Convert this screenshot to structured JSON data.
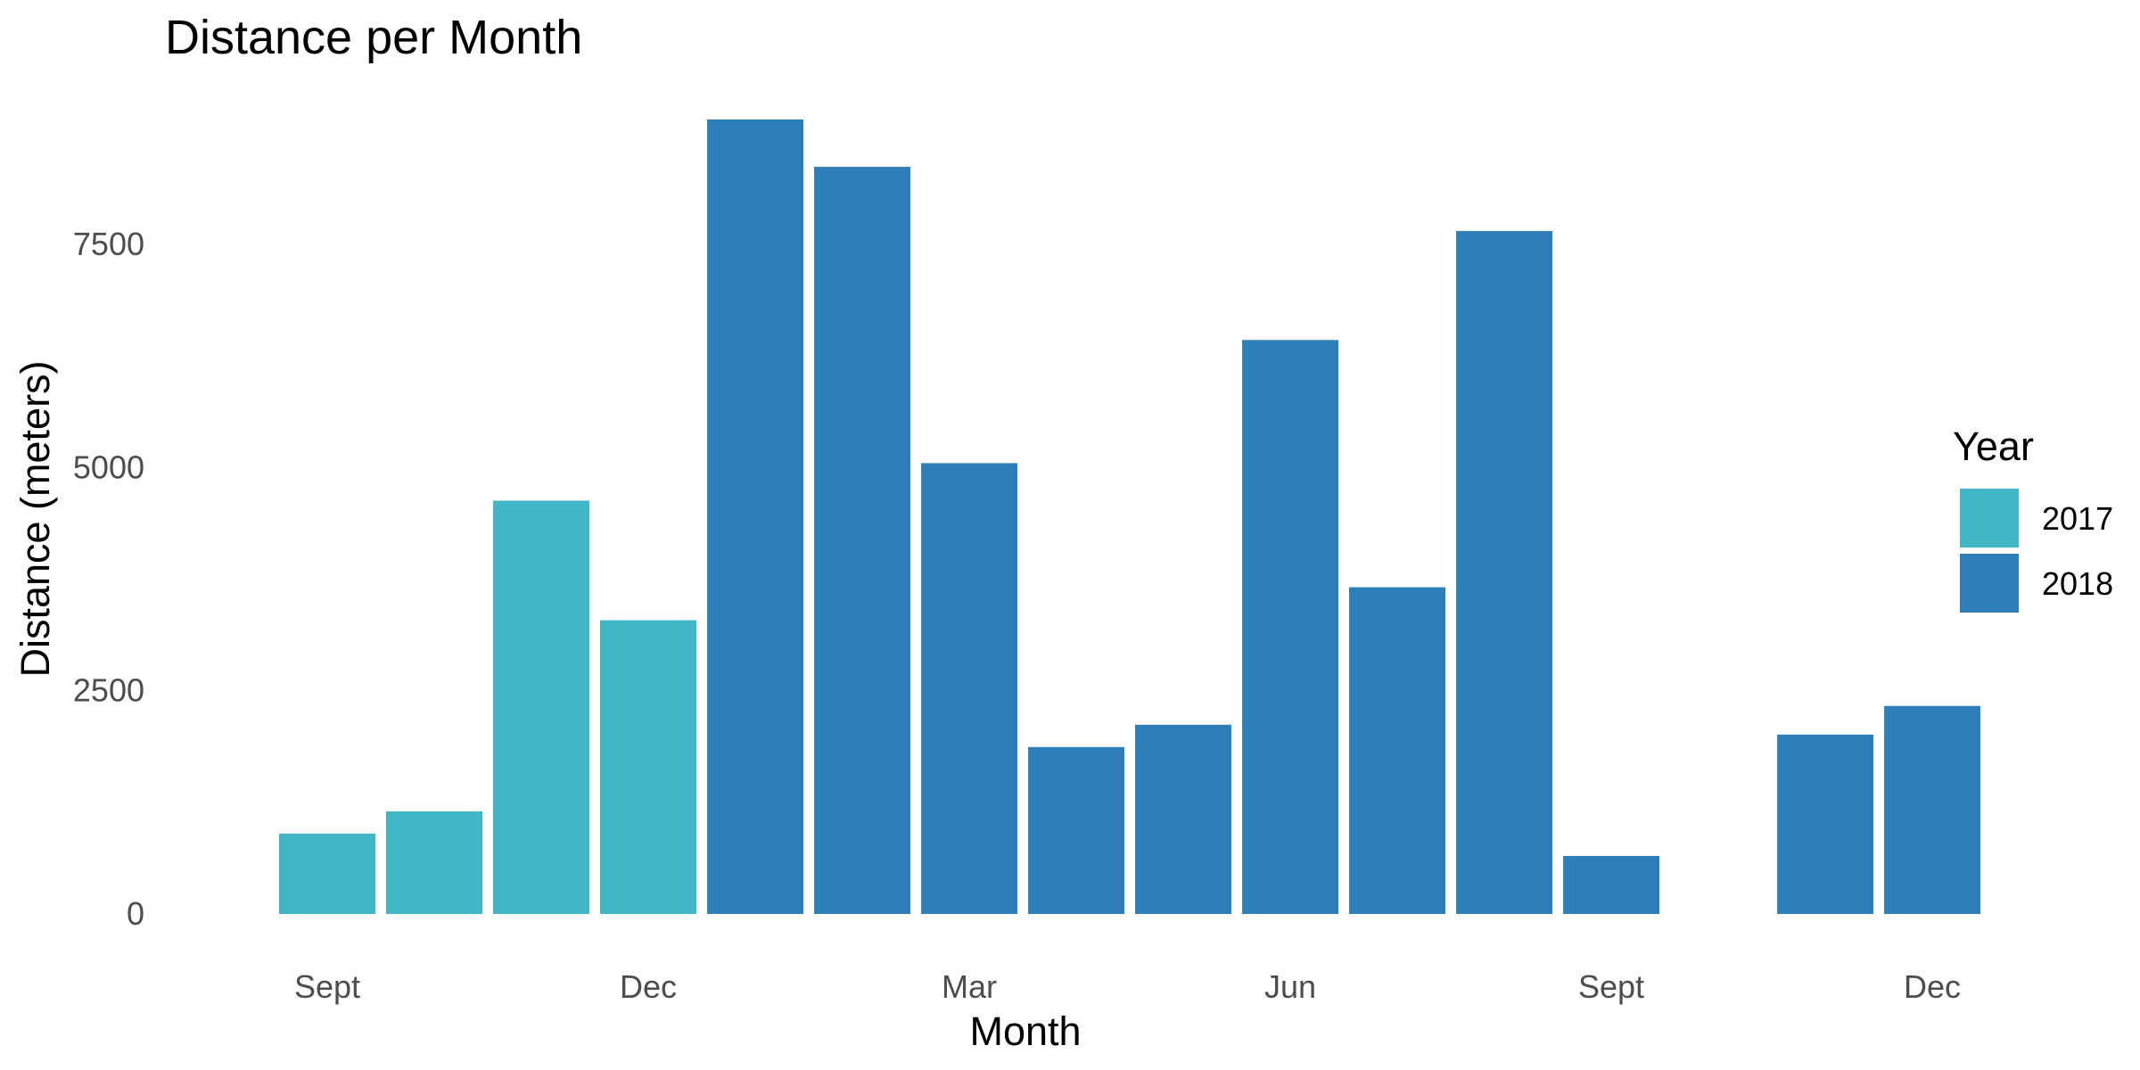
{
  "chart_data": {
    "type": "bar",
    "title": "Distance per Month",
    "xlabel": "Month",
    "ylabel": "Distance (meters)",
    "x_unit": "month",
    "x_range": [
      "2017-08",
      "2019-01"
    ],
    "x_tick_labels": [
      "Sept",
      "Dec",
      "Mar",
      "Jun",
      "Sept",
      "Dec"
    ],
    "x_tick_months": [
      "2017-09",
      "2017-12",
      "2018-03",
      "2018-06",
      "2018-09",
      "2018-12"
    ],
    "y_ticks": [
      0,
      2500,
      5000,
      7500
    ],
    "ylim": [
      0,
      9000
    ],
    "grid": false,
    "legend": {
      "title": "Year",
      "position": "right",
      "entries": [
        {
          "name": "2017",
          "color": "#41b6c4"
        },
        {
          "name": "2018",
          "color": "#2c7fb8"
        }
      ]
    },
    "series": [
      {
        "name": "2017",
        "color": "#41b6c4",
        "x": [
          "2017-09",
          "2017-10",
          "2017-11",
          "2017-12"
        ],
        "values": [
          900,
          1150,
          4630,
          3290
        ]
      },
      {
        "name": "2018",
        "color": "#2c7fb8",
        "x": [
          "2018-01",
          "2018-02",
          "2018-03",
          "2018-04",
          "2018-05",
          "2018-06",
          "2018-07",
          "2018-08",
          "2018-09",
          "2018-11",
          "2018-12"
        ],
        "values": [
          8900,
          8370,
          5050,
          1870,
          2120,
          6430,
          3660,
          7650,
          650,
          2010,
          2330
        ]
      }
    ]
  }
}
